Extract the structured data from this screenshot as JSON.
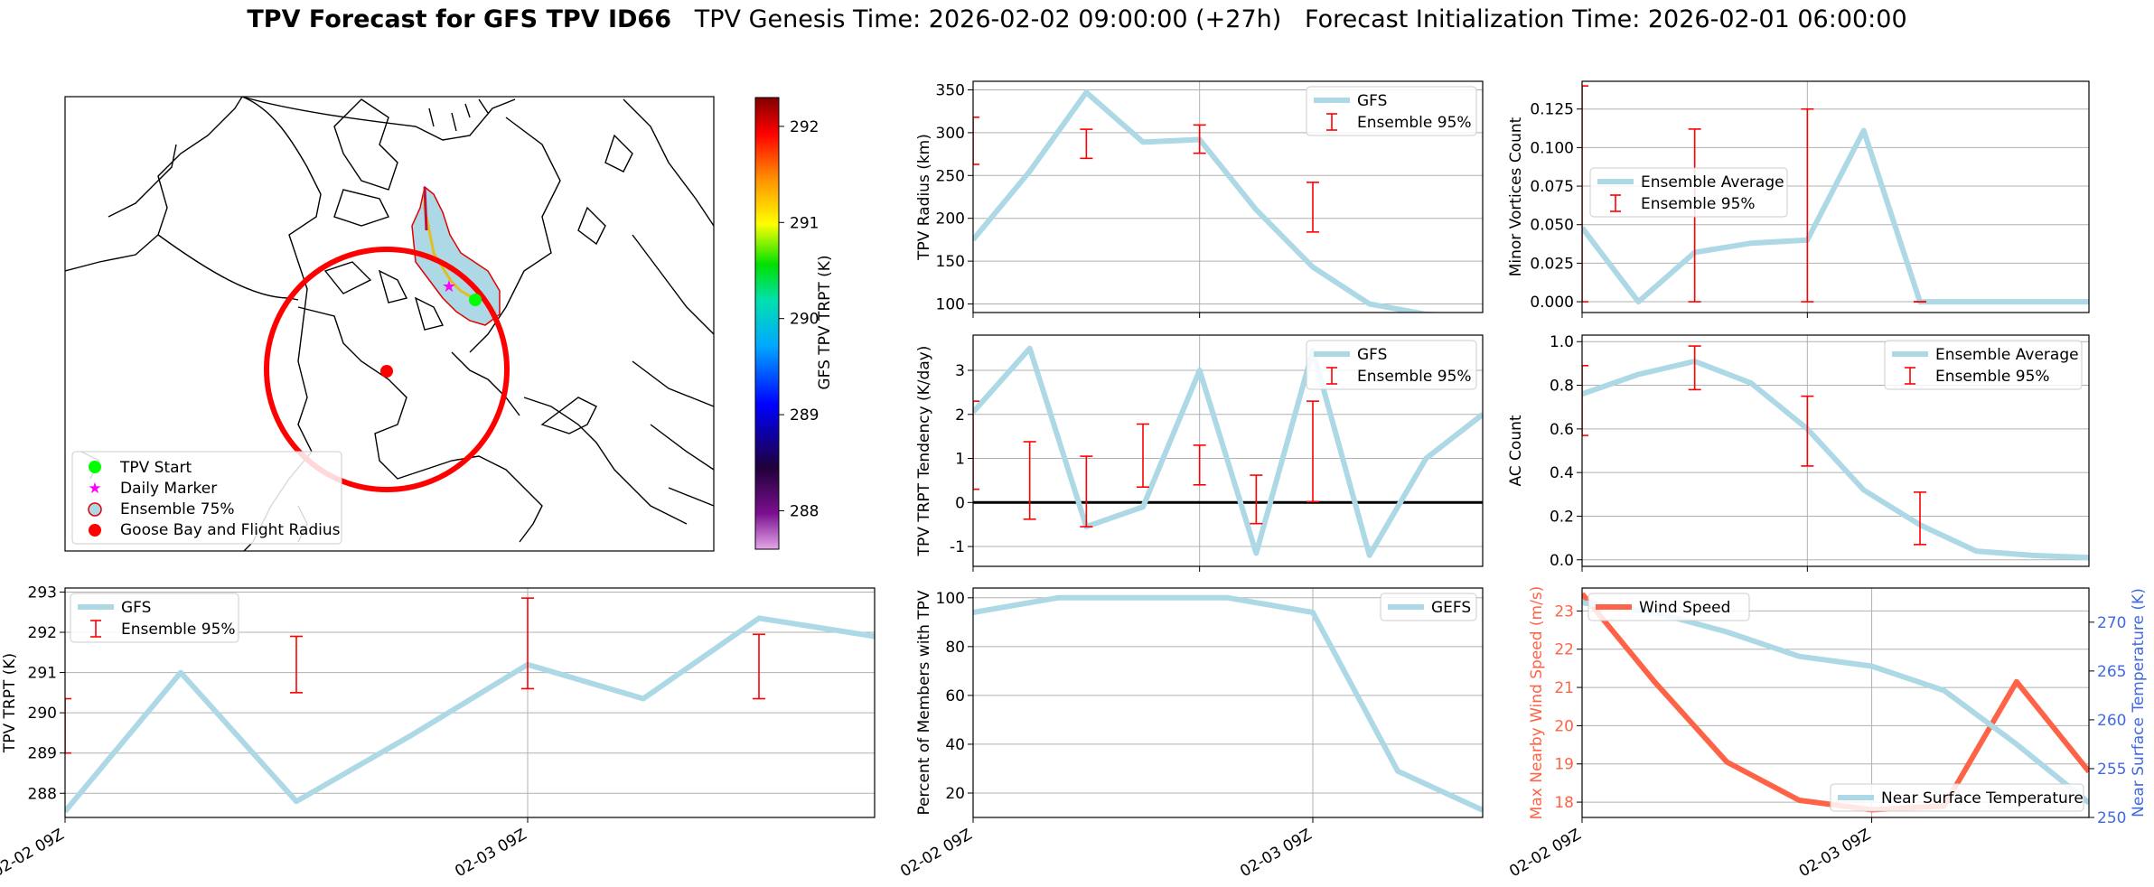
{
  "title": {
    "bold": "TPV Forecast for GFS TPV ID66",
    "rest": "   TPV Genesis Time: 2026-02-02 09:00:00 (+27h)   Forecast Initialization Time: 2026-02-01 06:00:00"
  },
  "colors": {
    "line": "#add8e6",
    "error": "#ff0000",
    "wind": "#ff6347",
    "temp_axis": "#4169e1",
    "grid": "#b0b0b0"
  },
  "map": {
    "colorbar_label": "GFS TPV TRPT (K)",
    "colorbar_ticks": [
      "292",
      "291",
      "290",
      "289",
      "288"
    ],
    "colorbar_range": [
      287.6,
      292.3
    ],
    "legend": [
      {
        "label": "TPV Start",
        "icon": "green-dot"
      },
      {
        "label": "Daily Marker",
        "icon": "magenta-star"
      },
      {
        "label": "Ensemble 75%",
        "icon": "blue-red-dot"
      },
      {
        "label": "Goose Bay and Flight Radius",
        "icon": "red-dot"
      }
    ]
  },
  "chart_data": [
    {
      "id": "radius",
      "type": "line",
      "ylabel": "TPV Radius (km)",
      "ylim": [
        90,
        360
      ],
      "yticks": [
        100,
        150,
        200,
        250,
        300,
        350
      ],
      "xlim": [
        0,
        9
      ],
      "grid": true,
      "legend_loc": "upper right",
      "series": [
        {
          "name": "GFS",
          "x": [
            0,
            1,
            2,
            3,
            4,
            5,
            6,
            7,
            8,
            9
          ],
          "y": [
            175,
            255,
            347,
            289,
            292,
            210,
            143,
            100,
            88,
            85
          ]
        }
      ],
      "errorbars": {
        "name": "Ensemble 95%",
        "x": [
          0,
          2,
          4,
          6
        ],
        "low": [
          263,
          270,
          276,
          184
        ],
        "high": [
          318,
          304,
          309,
          242
        ]
      },
      "xtick_labels": []
    },
    {
      "id": "minor",
      "type": "line",
      "ylabel": "Minor Vortices Count",
      "ylim": [
        -0.007,
        0.143
      ],
      "yticks": [
        "0.000",
        "0.025",
        "0.050",
        "0.075",
        "0.100",
        "0.125"
      ],
      "xlim": [
        0,
        9
      ],
      "grid": true,
      "legend_loc": "center left",
      "series": [
        {
          "name": "Ensemble Average",
          "x": [
            0,
            1,
            2,
            3,
            4,
            5,
            6,
            7,
            8,
            9
          ],
          "y": [
            0.048,
            0,
            0.032,
            0.038,
            0.04,
            0.111,
            0,
            0,
            0,
            0
          ]
        }
      ],
      "errorbars": {
        "name": "Ensemble 95%",
        "x": [
          0,
          2,
          4,
          6
        ],
        "low": [
          0,
          0,
          0,
          0
        ],
        "high": [
          0.14,
          0.112,
          0.125,
          0
        ]
      },
      "xtick_labels": []
    },
    {
      "id": "tendency",
      "type": "line",
      "ylabel": "TPV TRPT Tendency (K/day)",
      "ylim": [
        -1.45,
        3.8
      ],
      "yticks": [
        -1,
        0,
        1,
        2,
        3
      ],
      "xlim": [
        0,
        9
      ],
      "grid": true,
      "legend_loc": "upper right",
      "zero_line": true,
      "series": [
        {
          "name": "GFS",
          "x": [
            0,
            1,
            2,
            3,
            4,
            5,
            6,
            7,
            8,
            9
          ],
          "y": [
            2.05,
            3.5,
            -0.55,
            -0.1,
            3.0,
            -1.15,
            3.45,
            -1.2,
            1.0,
            2.0
          ]
        }
      ],
      "errorbars": {
        "name": "Ensemble 95%",
        "x": [
          0,
          1,
          2,
          3,
          4,
          5,
          6
        ],
        "low": [
          0.3,
          -0.38,
          -0.55,
          0.35,
          0.4,
          -0.48,
          0.02
        ],
        "high": [
          2.3,
          1.38,
          1.05,
          1.78,
          1.3,
          0.62,
          2.3
        ]
      },
      "xtick_labels": []
    },
    {
      "id": "ac",
      "type": "line",
      "ylabel": "AC Count",
      "ylim": [
        -0.03,
        1.03
      ],
      "yticks": [
        "0.0",
        "0.2",
        "0.4",
        "0.6",
        "0.8",
        "1.0"
      ],
      "xlim": [
        0,
        9
      ],
      "grid": true,
      "legend_loc": "upper right",
      "series": [
        {
          "name": "Ensemble Average",
          "x": [
            0,
            1,
            2,
            3,
            4,
            5,
            6,
            7,
            8,
            9
          ],
          "y": [
            0.76,
            0.85,
            0.91,
            0.81,
            0.6,
            0.32,
            0.16,
            0.04,
            0.02,
            0.01
          ]
        }
      ],
      "errorbars": {
        "name": "Ensemble 95%",
        "x": [
          0,
          2,
          4,
          6
        ],
        "low": [
          0.57,
          0.78,
          0.43,
          0.07
        ],
        "high": [
          0.89,
          0.98,
          0.75,
          0.31
        ]
      },
      "xtick_labels": []
    },
    {
      "id": "trpt",
      "type": "line",
      "ylabel": "TPV TRPT (K)",
      "ylim": [
        287.4,
        293.1
      ],
      "yticks": [
        288,
        289,
        290,
        291,
        292,
        293
      ],
      "xlim": [
        0,
        7
      ],
      "grid": true,
      "legend_loc": "upper left",
      "series": [
        {
          "name": "GFS",
          "x": [
            0,
            1,
            2,
            3,
            4,
            5,
            6,
            7
          ],
          "y": [
            287.55,
            291.0,
            287.8,
            289.45,
            291.2,
            290.35,
            292.35,
            291.9
          ]
        }
      ],
      "errorbars": {
        "name": "Ensemble 95%",
        "x": [
          0,
          2,
          4,
          6
        ],
        "low": [
          289.0,
          290.5,
          290.6,
          290.35
        ],
        "high": [
          290.35,
          291.9,
          292.85,
          291.95
        ]
      },
      "xtick_labels": [
        "02-02 09Z",
        "02-03 09Z"
      ]
    },
    {
      "id": "percent",
      "type": "line",
      "ylabel": "Percent of Members with TPV",
      "ylim": [
        10,
        104
      ],
      "yticks": [
        20,
        40,
        60,
        80,
        100
      ],
      "xlim": [
        0,
        6
      ],
      "grid": true,
      "legend_loc": "upper right",
      "series": [
        {
          "name": "GEFS",
          "x": [
            0,
            1,
            2,
            3,
            4,
            5,
            6
          ],
          "y": [
            94,
            100,
            100,
            100,
            94,
            29,
            13
          ]
        }
      ],
      "xtick_labels": [
        "02-02 09Z",
        "02-03 09Z"
      ]
    },
    {
      "id": "wind_temp",
      "type": "line",
      "ylabel": "Max Nearby Wind Speed (m/s)",
      "ylim": [
        17.6,
        23.6
      ],
      "yticks": [
        18,
        19,
        20,
        21,
        22,
        23
      ],
      "y2label": "Near Surface Temperature (K)",
      "y2lim": [
        250,
        273.5
      ],
      "y2ticks": [
        250,
        255,
        260,
        265,
        270
      ],
      "xlim": [
        0,
        7
      ],
      "grid": true,
      "series": [
        {
          "name": "Wind Speed",
          "axis": "left",
          "x": [
            0,
            1,
            2,
            3,
            4,
            5,
            6,
            7
          ],
          "y": [
            23.45,
            21.15,
            19.05,
            18.05,
            17.8,
            17.9,
            21.15,
            18.8
          ]
        },
        {
          "name": "Near Surface Temperature",
          "axis": "right",
          "x": [
            0,
            1,
            2,
            3,
            4,
            5,
            6,
            7
          ],
          "y": [
            272.0,
            271.0,
            269.0,
            266.5,
            265.5,
            263.0,
            257.5,
            251.5
          ]
        }
      ],
      "xtick_labels": [
        "02-02 09Z",
        "02-03 09Z"
      ]
    }
  ]
}
